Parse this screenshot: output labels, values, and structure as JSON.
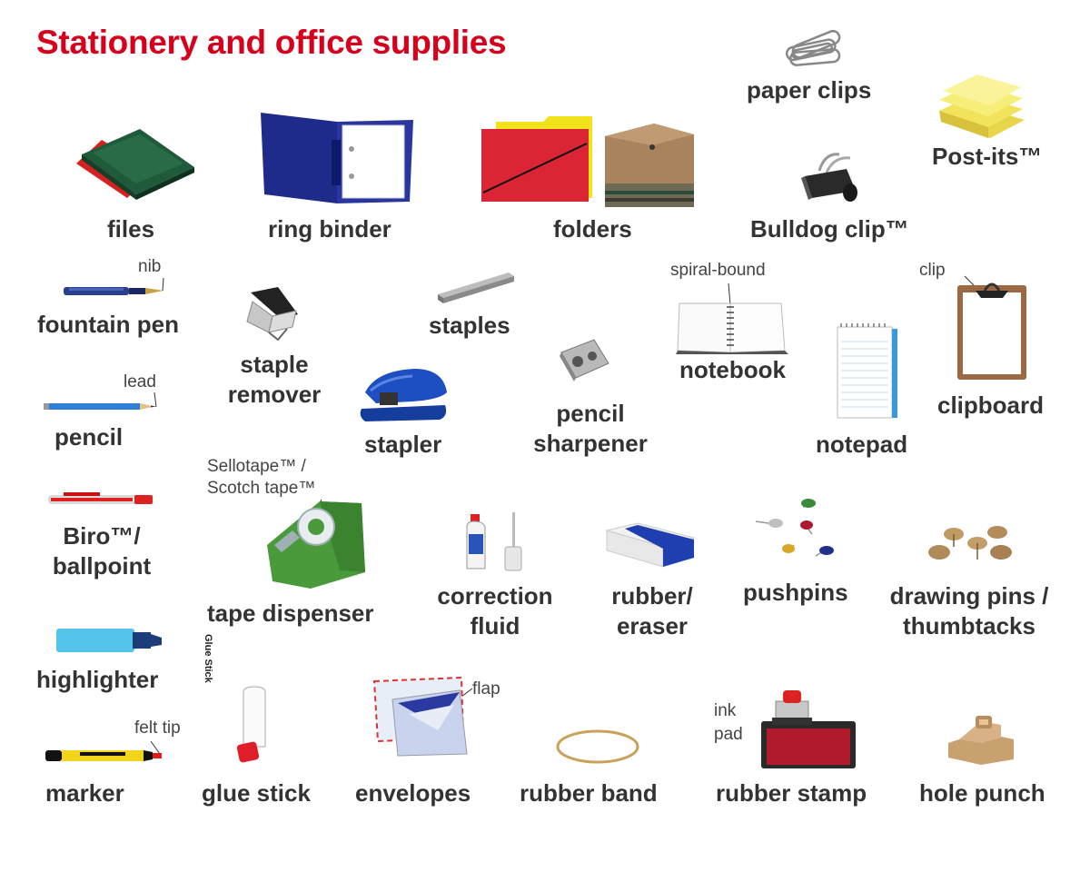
{
  "page": {
    "title": "Stationery and office supplies"
  },
  "items": {
    "paper_clips": "paper clips",
    "post_its": "Post-its™",
    "files": "files",
    "ring_binder": "ring binder",
    "folders": "folders",
    "bulldog_clip": "Bulldog clip™",
    "fountain_pen": "fountain pen",
    "nib": "nib",
    "staples": "staples",
    "spiral_bound": "spiral-bound",
    "notebook": "notebook",
    "clip": "clip",
    "clipboard": "clipboard",
    "staple_remover_1": "staple",
    "staple_remover_2": "remover",
    "stapler": "stapler",
    "pencil_sharpener_1": "pencil",
    "pencil_sharpener_2": "sharpener",
    "notepad": "notepad",
    "lead": "lead",
    "pencil": "pencil",
    "sellotape_1": "Sellotape™ /",
    "sellotape_2": "Scotch tape™",
    "biro_1": "Biro™/",
    "biro_2": "ballpoint",
    "tape_dispenser": "tape dispenser",
    "correction_fluid_1": "correction",
    "correction_fluid_2": "fluid",
    "rubber_1": "rubber/",
    "rubber_2": "eraser",
    "pushpins": "pushpins",
    "drawing_pins_1": "drawing pins /",
    "drawing_pins_2": "thumbtacks",
    "highlighter": "highlighter",
    "felt_tip": "felt tip",
    "flap": "flap",
    "ink": "ink",
    "pad": "pad",
    "marker": "marker",
    "glue_stick": "glue stick",
    "envelopes": "envelopes",
    "rubber_band": "rubber band",
    "rubber_stamp": "rubber stamp",
    "hole_punch": "hole punch",
    "glue_stick_print": "Glue Stick"
  }
}
